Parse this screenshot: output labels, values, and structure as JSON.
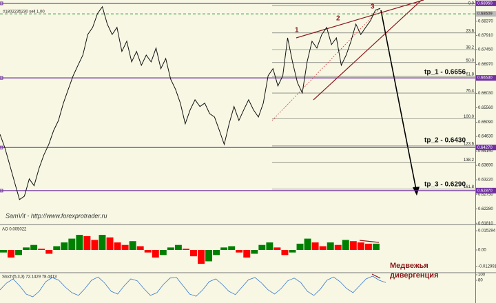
{
  "chart_data": [
    {
      "type": "line",
      "header": "#1802235230 sell 1.00",
      "watermark": "SamVit - http://www.forexprotrader.ru",
      "color": "#111111",
      "values": [
        0.647,
        0.6426,
        0.637,
        0.6314,
        0.6258,
        0.6269,
        0.6325,
        0.6303,
        0.6359,
        0.6403,
        0.6437,
        0.6482,
        0.6515,
        0.6571,
        0.6616,
        0.666,
        0.6694,
        0.6727,
        0.6794,
        0.6817,
        0.6862,
        0.6884,
        0.6828,
        0.6794,
        0.6817,
        0.6739,
        0.6772,
        0.6705,
        0.6739,
        0.6694,
        0.6727,
        0.6705,
        0.675,
        0.6683,
        0.6716,
        0.6649,
        0.6616,
        0.6571,
        0.6504,
        0.6549,
        0.6582,
        0.656,
        0.6571,
        0.6537,
        0.6526,
        0.6482,
        0.6437,
        0.6504,
        0.656,
        0.6515,
        0.6549,
        0.6582,
        0.6549,
        0.6526,
        0.6571,
        0.666,
        0.6683,
        0.6627,
        0.666,
        0.6783,
        0.6705,
        0.6638,
        0.6604,
        0.6705,
        0.6772,
        0.675,
        0.6794,
        0.6817,
        0.6761,
        0.6783,
        0.6694,
        0.6727,
        0.6772,
        0.6828,
        0.6794,
        0.6817,
        0.6839,
        0.6873,
        0.6879
      ],
      "ylim": [
        0.6177,
        0.6906
      ],
      "yticks": [
        {
          "value": 0.6837,
          "label": "0.68370"
        },
        {
          "value": 0.6791,
          "label": "0.67910"
        },
        {
          "value": 0.6745,
          "label": "0.67450"
        },
        {
          "value": 0.6697,
          "label": "0.66970"
        },
        {
          "value": 0.6603,
          "label": "0.66030"
        },
        {
          "value": 0.6556,
          "label": "0.65560"
        },
        {
          "value": 0.6509,
          "label": "0.65090"
        },
        {
          "value": 0.6463,
          "label": "0.64630"
        },
        {
          "value": 0.6415,
          "label": "0.64150"
        },
        {
          "value": 0.6369,
          "label": "0.63690"
        },
        {
          "value": 0.6322,
          "label": "0.63220"
        },
        {
          "value": 0.6275,
          "label": "0.62750"
        },
        {
          "value": 0.6228,
          "label": "0.62280"
        },
        {
          "value": 0.6181,
          "label": "0.61810"
        }
      ],
      "hlines": [
        {
          "value": 0.6895,
          "label": "0.68950"
        },
        {
          "value": 0.6653,
          "label": "0.66530"
        },
        {
          "value": 0.6427,
          "label": "0.64270"
        },
        {
          "value": 0.6287,
          "label": "0.62870"
        }
      ],
      "hline_color": "#7030a0",
      "dashed_line": {
        "value": 0.68609,
        "label": "0.68609"
      },
      "fib_levels": [
        {
          "value": 0.6888,
          "label": "0.0"
        },
        {
          "value": 0.6799,
          "label": "23.6"
        },
        {
          "value": 0.6745,
          "label": "38.2"
        },
        {
          "value": 0.6703,
          "label": "50.0"
        },
        {
          "value": 0.6658,
          "label": "61.8"
        },
        {
          "value": 0.6604,
          "label": "76.4"
        },
        {
          "value": 0.652,
          "label": "100.0"
        },
        {
          "value": 0.6432,
          "label": "123.6"
        },
        {
          "value": 0.6379,
          "label": "138.2"
        },
        {
          "value": 0.6292,
          "label": "161.8"
        }
      ],
      "annotations": [
        "tp_1 - 0.6656",
        "tp_2 - 0.6430",
        "tp_3 - 0.6290"
      ],
      "wave_labels": [
        "1",
        "2",
        "3"
      ]
    },
    {
      "type": "bar",
      "title": "AO 0.005022",
      "up_color": "#008000",
      "down_color": "#ff0000",
      "values": [
        -0.002,
        -0.006,
        -0.004,
        0.002,
        0.004,
        0.001,
        -0.003,
        0.003,
        0.006,
        0.009,
        0.012,
        0.011,
        0.008,
        0.012,
        0.01,
        0.006,
        0.004,
        0.007,
        0.003,
        -0.002,
        -0.006,
        -0.004,
        0.002,
        0.004,
        0.001,
        -0.005,
        -0.011,
        -0.009,
        -0.004,
        0.002,
        0.003,
        -0.002,
        -0.006,
        -0.003,
        0.004,
        0.006,
        0.002,
        -0.004,
        -0.002,
        0.005,
        0.009,
        0.006,
        0.003,
        0.006,
        0.004,
        0.008,
        0.007,
        0.006,
        0.005,
        0.005
      ],
      "ylim": [
        -0.0175,
        0.0197
      ],
      "yticks": [
        0.015294,
        {
          "value": 0,
          "label": "0.00"
        },
        -0.012991
      ]
    },
    {
      "type": "line",
      "title": "Stoch(5,3,3) 72.1429 78.4413",
      "color": "#3a78c8",
      "values": [
        45,
        70,
        85,
        60,
        30,
        20,
        40,
        75,
        90,
        80,
        55,
        35,
        25,
        50,
        80,
        92,
        70,
        40,
        30,
        60,
        85,
        78,
        50,
        25,
        35,
        65,
        88,
        90,
        60,
        30,
        22,
        45,
        75,
        85,
        65,
        40,
        28,
        55,
        82,
        90,
        70,
        45,
        30,
        50,
        78,
        88,
        72,
        40,
        25,
        48,
        80,
        92,
        75,
        50,
        35,
        60,
        85,
        95,
        80,
        72
      ],
      "ylim": [
        -2.5,
        105
      ],
      "yticks": [
        100,
        80
      ],
      "annotation": [
        "Медвежья",
        "дивергенция"
      ]
    }
  ]
}
